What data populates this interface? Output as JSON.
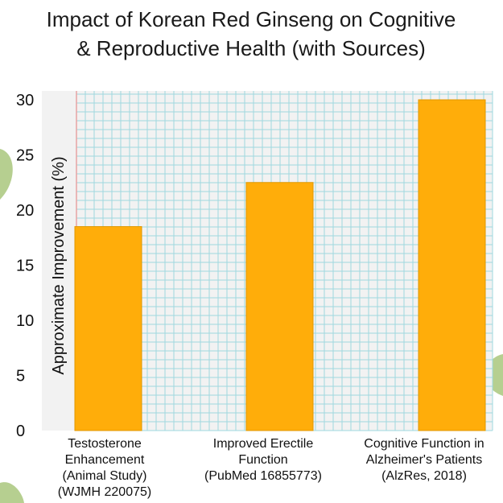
{
  "colors": {
    "bar": "#ffad0a",
    "bar_border": "#e09800",
    "grid": "#9fd8df",
    "left_margin_line": "#e8a3a3",
    "plot_background": "#f2f2f2",
    "leaf": "#a9c77c"
  },
  "chart_data": {
    "type": "bar",
    "title_lines": [
      "Impact of Korean Red Ginseng on Cognitive",
      "& Reproductive Health (with Sources)"
    ],
    "ylabel": "Approximate Improvement (%)",
    "xlabel": "",
    "ylim": [
      0,
      30
    ],
    "yticks": [
      0,
      5,
      10,
      15,
      20,
      25,
      30
    ],
    "grid": true,
    "categories": [
      [
        "Testosterone",
        "Enhancement",
        "(Animal Study)",
        "(WJMH 220075)"
      ],
      [
        "Improved Erectile",
        "Function",
        "(PubMed 16855773)"
      ],
      [
        "Cognitive Function in",
        "Alzheimer's Patients",
        "(AlzRes, 2018)"
      ]
    ],
    "values": [
      18.5,
      22.5,
      30
    ]
  }
}
